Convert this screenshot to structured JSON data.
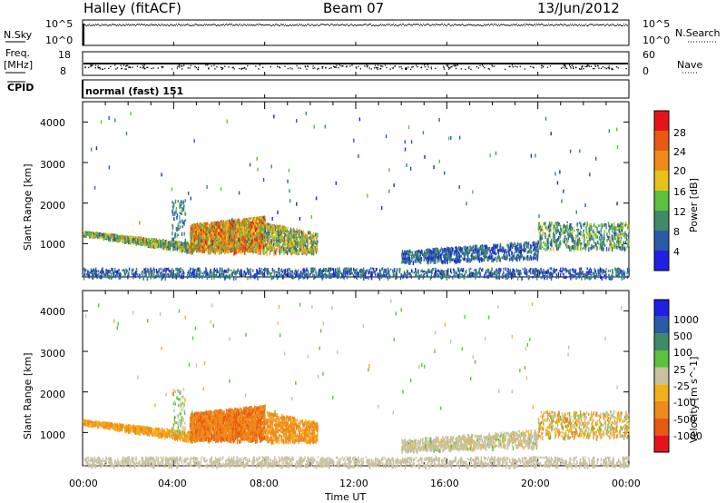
{
  "header": {
    "station": "Halley (fitACF)",
    "beam": "Beam 07",
    "date": "13/Jun/2012"
  },
  "nsky_panel": {
    "left_label": "N.Sky",
    "left_ticks": [
      "10^5",
      "10^0"
    ],
    "right_ticks": [
      "10^5",
      "10^0"
    ],
    "right_label": "N.Search"
  },
  "freq_panel": {
    "left_label_1": "Freq.",
    "left_label_2": "[MHz]",
    "left_ticks": [
      "18",
      "8"
    ],
    "right_ticks": [
      "60",
      "0"
    ],
    "right_label": "Nave"
  },
  "cpid": {
    "label": "CPID",
    "mode": "normal (fast) 151"
  },
  "x_axis": {
    "label": "Time UT",
    "ticks": [
      "00:00",
      "04:00",
      "08:00",
      "12:00",
      "16:00",
      "20:00",
      "00:00"
    ]
  },
  "y_axis": {
    "label": "Slant Range [km]",
    "ticks": [
      "1000",
      "2000",
      "3000",
      "4000"
    ]
  },
  "colors": {
    "power": [
      "#1f1fe6",
      "#2a5aa8",
      "#3f8a6a",
      "#5cc13f",
      "#e6c21a",
      "#f08a1a",
      "#e85a14",
      "#e6141a"
    ],
    "velocity": [
      "#e6141a",
      "#e85a14",
      "#f08a1a",
      "#f2b11a",
      "#c8c0a0",
      "#5cc13f",
      "#3f8a6a",
      "#2a5aa8",
      "#1f1fe6"
    ]
  },
  "chart_data": [
    {
      "type": "heatmap",
      "title": "Power",
      "xlabel": "Time UT",
      "ylabel": "Slant Range [km]",
      "xlim": [
        0,
        24
      ],
      "ylim": [
        180,
        4500
      ],
      "colorbar": {
        "label": "Power [dB]",
        "ticks": [
          "4",
          "8",
          "12",
          "16",
          "20",
          "24",
          "28"
        ],
        "range": [
          0,
          32
        ]
      },
      "features": [
        {
          "t0": 0.0,
          "t1": 4.8,
          "r0": 820,
          "r1": 1300,
          "value": 10,
          "desc": "early slant band"
        },
        {
          "t0": 4.7,
          "t1": 8.0,
          "r0": 780,
          "r1": 1700,
          "value": 22,
          "desc": "strong patch"
        },
        {
          "t0": 8.0,
          "t1": 10.3,
          "r0": 820,
          "r1": 1500,
          "value": 14
        },
        {
          "t0": 14.0,
          "t1": 20.0,
          "r0": 550,
          "r1": 950,
          "value": 6
        },
        {
          "t0": 20.0,
          "t1": 24.0,
          "r0": 900,
          "r1": 1550,
          "value": 8
        },
        {
          "t0": 0.0,
          "t1": 24.0,
          "r0": 190,
          "r1": 400,
          "value": 6,
          "desc": "ground scatter"
        }
      ]
    },
    {
      "type": "heatmap",
      "title": "Velocity",
      "xlabel": "Time UT",
      "ylabel": "Slant Range [km]",
      "xlim": [
        0,
        24
      ],
      "ylim": [
        180,
        4500
      ],
      "colorbar": {
        "label": "Velocity [m s^-1]",
        "ticks": [
          "1000",
          "500",
          "100",
          "25",
          "-25",
          "-100",
          "-500",
          "-1000"
        ]
      },
      "features": [
        {
          "t0": 0.0,
          "t1": 4.8,
          "r0": 820,
          "r1": 1300,
          "value": -100
        },
        {
          "t0": 4.7,
          "t1": 8.0,
          "r0": 780,
          "r1": 1700,
          "value": -300
        },
        {
          "t0": 8.0,
          "t1": 10.3,
          "r0": 820,
          "r1": 1500,
          "value": -150
        },
        {
          "t0": 14.0,
          "t1": 20.0,
          "r0": 550,
          "r1": 950,
          "value": 0
        },
        {
          "t0": 20.0,
          "t1": 24.0,
          "r0": 900,
          "r1": 1550,
          "value": -120
        }
      ]
    }
  ]
}
